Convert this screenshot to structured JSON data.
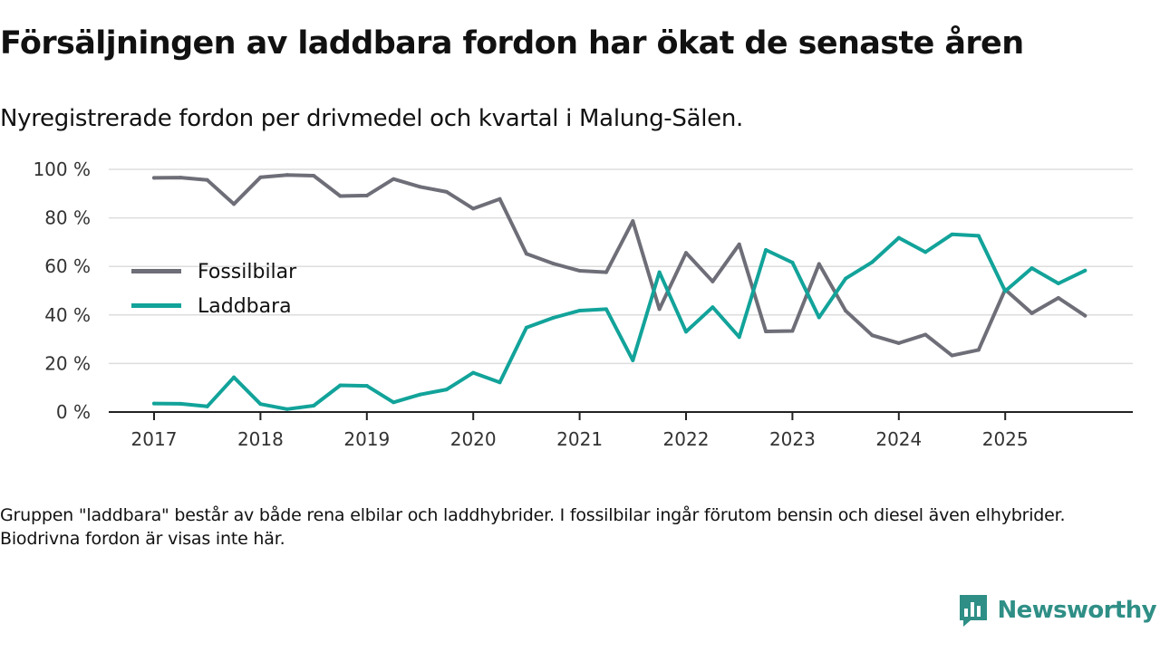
{
  "colors": {
    "fossil": "#6e6e78",
    "laddbara": "#12a39a",
    "grid": "#dddddd",
    "axis": "#222222",
    "brand": "#2f8f86"
  },
  "header": {
    "title": "Försäljningen av laddbara fordon har ökat de senaste åren",
    "subtitle": "Nyregistrerade fordon per drivmedel och kvartal i Malung-Sälen."
  },
  "footnote": "Gruppen \"laddbara\" består av både rena elbilar och laddhybrider. I fossilbilar ingår förutom bensin och diesel även elhybrider. Biodrivna fordon är visas inte här.",
  "brand": {
    "name": "Newsworthy",
    "icon": "newsworthy-logo-icon"
  },
  "chart_data": {
    "type": "line",
    "title": "Försäljningen av laddbara fordon har ökat de senaste åren",
    "subtitle": "Nyregistrerade fordon per drivmedel och kvartal i Malung-Sälen.",
    "xlabel": "",
    "ylabel": "",
    "ylim": [
      0,
      100
    ],
    "y_ticks": [
      0,
      20,
      40,
      60,
      80,
      100
    ],
    "y_tick_suffix": " %",
    "x_ticks": [
      "2017",
      "2018",
      "2019",
      "2020",
      "2021",
      "2022",
      "2023",
      "2024",
      "2025"
    ],
    "grid": true,
    "legend_position": "left-middle",
    "x": [
      "2017 Q1",
      "2017 Q2",
      "2017 Q3",
      "2017 Q4",
      "2018 Q1",
      "2018 Q2",
      "2018 Q3",
      "2018 Q4",
      "2019 Q1",
      "2019 Q2",
      "2019 Q3",
      "2019 Q4",
      "2020 Q1",
      "2020 Q2",
      "2020 Q3",
      "2020 Q4",
      "2021 Q1",
      "2021 Q2",
      "2021 Q3",
      "2021 Q4",
      "2022 Q1",
      "2022 Q2",
      "2022 Q3",
      "2022 Q4",
      "2023 Q1",
      "2023 Q2",
      "2023 Q3",
      "2023 Q4",
      "2024 Q1",
      "2024 Q2",
      "2024 Q3",
      "2024 Q4",
      "2025 Q1",
      "2025 Q2",
      "2025 Q3",
      "2025 Q4"
    ],
    "series": [
      {
        "name": "Fossilbilar",
        "color_key": "fossil",
        "values": [
          96.5,
          96.6,
          95.6,
          85.7,
          96.7,
          97.7,
          97.4,
          89.0,
          89.2,
          96.0,
          92.8,
          90.7,
          83.8,
          87.8,
          65.2,
          61.2,
          58.2,
          57.6,
          78.7,
          42.4,
          65.6,
          53.8,
          69.1,
          33.2,
          33.4,
          61.0,
          41.7,
          31.6,
          28.4,
          31.9,
          23.3,
          25.6,
          50.5,
          40.7,
          47.0,
          39.7
        ]
      },
      {
        "name": "Laddbara",
        "color_key": "laddbara",
        "values": [
          3.5,
          3.4,
          2.3,
          14.3,
          3.3,
          1.2,
          2.6,
          11.0,
          10.8,
          4.0,
          7.2,
          9.3,
          16.2,
          12.2,
          34.8,
          38.8,
          41.8,
          42.4,
          21.3,
          57.6,
          33.1,
          43.2,
          30.9,
          66.8,
          61.6,
          39.0,
          55.0,
          61.8,
          71.8,
          65.9,
          73.2,
          72.6,
          49.8,
          59.3,
          53.0,
          58.3
        ]
      }
    ]
  }
}
